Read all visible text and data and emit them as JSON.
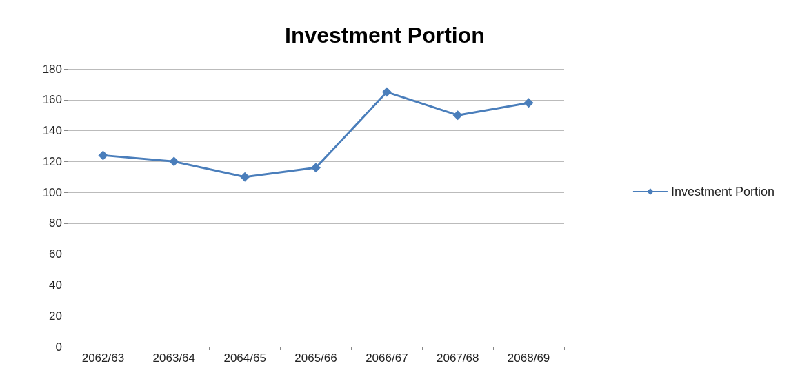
{
  "chart_data": {
    "type": "line",
    "title": "Investment Portion",
    "categories": [
      "2062/63",
      "2063/64",
      "2064/65",
      "2065/66",
      "2066/67",
      "2067/68",
      "2068/69"
    ],
    "series": [
      {
        "name": "Investment Portion",
        "color": "#4a7ebb",
        "values": [
          124,
          120,
          110,
          116,
          165,
          150,
          158
        ]
      }
    ],
    "ylim": [
      0,
      180
    ],
    "yticks": [
      0,
      20,
      40,
      60,
      80,
      100,
      120,
      140,
      160,
      180
    ],
    "grid": "y",
    "legend": "right",
    "marker": "diamond",
    "line_style": "solid"
  }
}
